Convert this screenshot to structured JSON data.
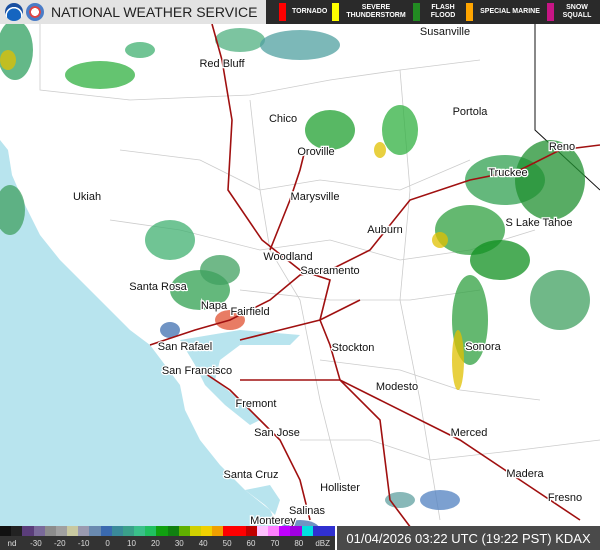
{
  "header": {
    "title": "NATIONAL WEATHER SERVICE",
    "logos": [
      "noaa-logo",
      "nws-logo"
    ],
    "warnings": [
      {
        "label": "TORNADO",
        "color": "#ff0000"
      },
      {
        "label": "SEVERE THUNDERSTORM",
        "color": "#ffff00"
      },
      {
        "label": "FLASH FLOOD",
        "color": "#228b22"
      },
      {
        "label": "SPECIAL MARINE",
        "color": "#ffa500"
      },
      {
        "label": "SNOW SQUALL",
        "color": "#c71585"
      }
    ]
  },
  "map": {
    "colors": {
      "ocean": "#b8e4ee",
      "land": "#ffffff",
      "highway": "#a01010",
      "border": "#cccccc"
    },
    "cities": [
      "Susanville",
      "Red Bluff",
      "Chico",
      "Portola",
      "Reno",
      "Oroville",
      "Truckee",
      "Ukiah",
      "Marysville",
      "Auburn",
      "S Lake Tahoe",
      "Woodland",
      "Sacramento",
      "Santa Rosa",
      "Napa",
      "Fairfield",
      "San Rafael",
      "Stockton",
      "San Francisco",
      "Sonora",
      "Modesto",
      "Fremont",
      "San Jose",
      "Merced",
      "Santa Cruz",
      "Madera",
      "Hollister",
      "Fresno",
      "Salinas",
      "Monterey"
    ]
  },
  "legend": {
    "labels": [
      "nd",
      "-30",
      "-20",
      "-10",
      "0",
      "10",
      "20",
      "30",
      "40",
      "50",
      "60",
      "70",
      "80",
      "dBZ"
    ]
  },
  "timestamp": "01/04/2026 03:22 UTC (19:22 PST) KDAX"
}
